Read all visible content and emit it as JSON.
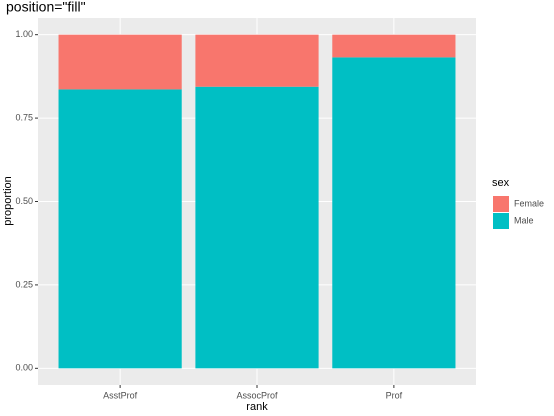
{
  "chart_data": {
    "type": "bar",
    "stacked": true,
    "title": "position=\"fill\"",
    "x_label": "rank",
    "y_label": "proportion",
    "legend_title": "sex",
    "legend_position": "right",
    "categories": [
      "AsstProf",
      "AssocProf",
      "Prof"
    ],
    "series": [
      {
        "name": "Female",
        "color": "#F8766D",
        "values": [
          0.164,
          0.156,
          0.068
        ]
      },
      {
        "name": "Male",
        "color": "#00BFC4",
        "values": [
          0.836,
          0.844,
          0.932
        ]
      }
    ],
    "ylim": [
      -0.05,
      1.05
    ],
    "yticks": [
      {
        "value": 0,
        "label": "0.00"
      },
      {
        "value": 0.25,
        "label": "0.25"
      },
      {
        "value": 0.5,
        "label": "0.50"
      },
      {
        "value": 0.75,
        "label": "0.75"
      },
      {
        "value": 1,
        "label": "1.00"
      }
    ],
    "grid": true
  }
}
